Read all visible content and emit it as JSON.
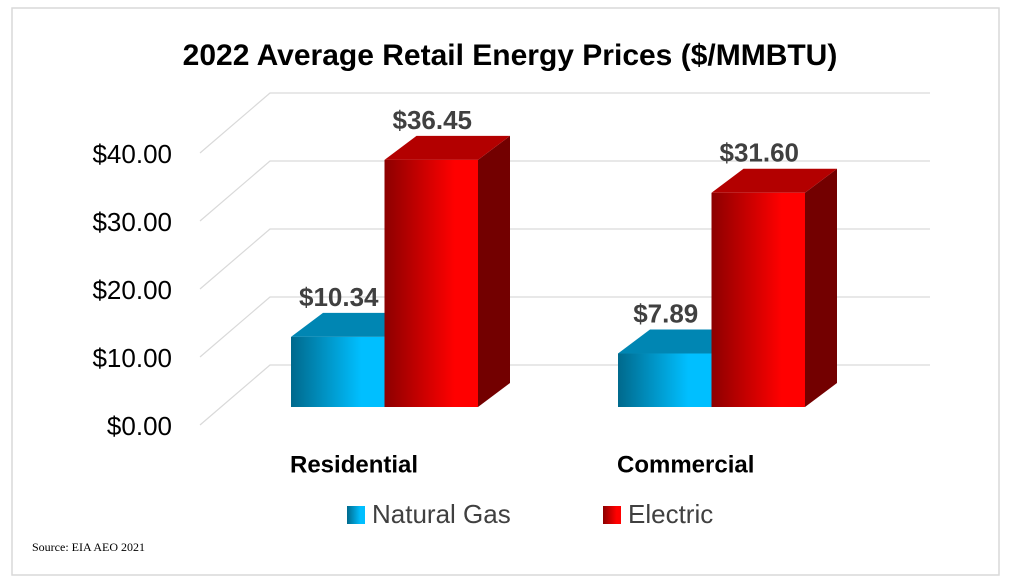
{
  "chart_data": {
    "type": "bar3d",
    "title": "2022 Average Retail Energy Prices ($/MMBTU)",
    "categories": [
      "Residential",
      "Commercial"
    ],
    "series": [
      {
        "name": "Natural Gas",
        "color": "#00bfff",
        "values": [
          10.34,
          7.89
        ],
        "value_labels": [
          "$10.34",
          "$7.89"
        ]
      },
      {
        "name": "Electric",
        "color": "#ff0000",
        "values": [
          36.45,
          31.6
        ],
        "value_labels": [
          "$36.45",
          "$31.60"
        ]
      }
    ],
    "ylim": [
      0,
      40
    ],
    "yticks": [
      {
        "value": 0,
        "label": "$0.00"
      },
      {
        "value": 10,
        "label": "$10.00"
      },
      {
        "value": 20,
        "label": "$20.00"
      },
      {
        "value": 30,
        "label": "$30.00"
      },
      {
        "value": 40,
        "label": "$40.00"
      }
    ],
    "grid": true,
    "legend": "bottom",
    "source": "Source: EIA AEO 2021"
  }
}
